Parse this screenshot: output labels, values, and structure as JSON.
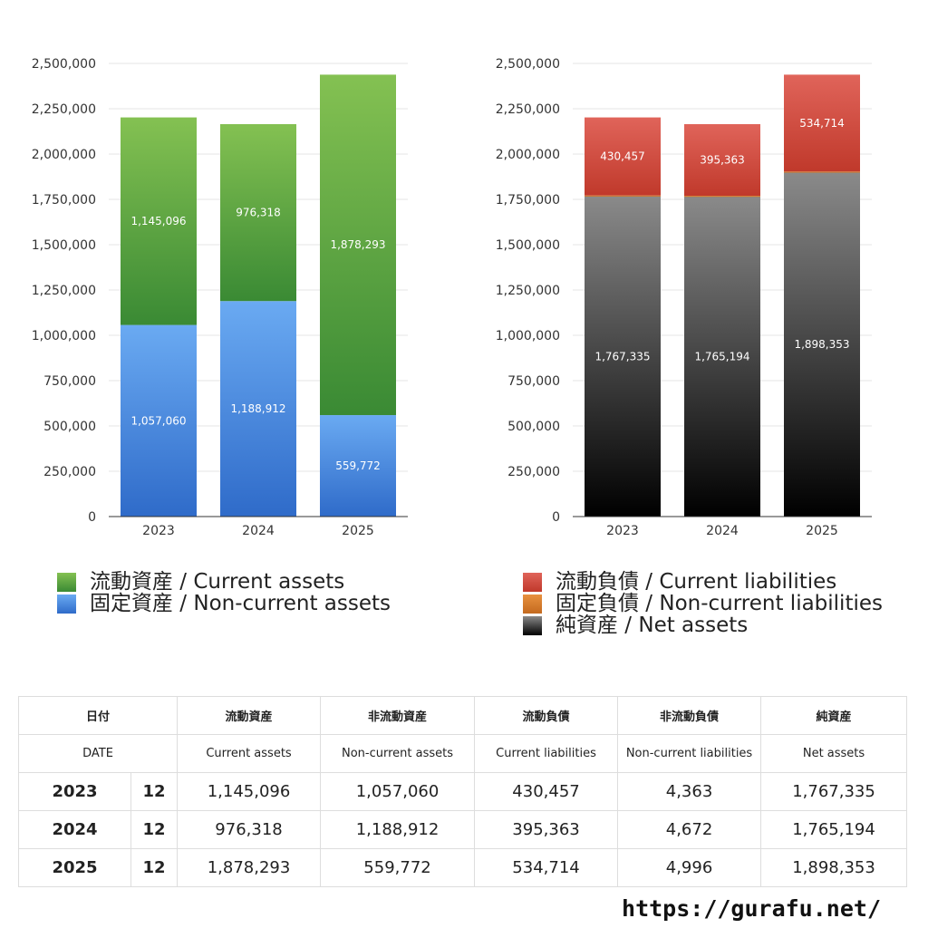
{
  "chart_data": [
    {
      "type": "bar",
      "stacked": true,
      "categories": [
        "2023",
        "2024",
        "2025"
      ],
      "ylim": [
        0,
        2500000
      ],
      "yticks": [
        0,
        250000,
        500000,
        750000,
        1000000,
        1250000,
        1500000,
        1750000,
        2000000,
        2250000,
        2500000
      ],
      "yticks_labels": [
        "0",
        "250,000",
        "500,000",
        "750,000",
        "1,000,000",
        "1,250,000",
        "1,500,000",
        "1,750,000",
        "2,000,000",
        "2,250,000",
        "2,500,000"
      ],
      "grid": true,
      "legend_position": "bottom",
      "series": [
        {
          "name": "固定資産 / Non-current assets",
          "values": [
            1057060,
            1188912,
            559772
          ],
          "labels": [
            "1,057,060",
            "1,188,912",
            "559,772"
          ],
          "color_top": "#6aaaf2",
          "color_bottom": "#2f6bc9"
        },
        {
          "name": "流動資産 / Current assets",
          "values": [
            1145096,
            976318,
            1878293
          ],
          "labels": [
            "1,145,096",
            "976,318",
            "1,878,293"
          ],
          "color_top": "#84c152",
          "color_bottom": "#3a8a34"
        }
      ]
    },
    {
      "type": "bar",
      "stacked": true,
      "categories": [
        "2023",
        "2024",
        "2025"
      ],
      "ylim": [
        0,
        2500000
      ],
      "yticks": [
        0,
        250000,
        500000,
        750000,
        1000000,
        1250000,
        1500000,
        1750000,
        2000000,
        2250000,
        2500000
      ],
      "yticks_labels": [
        "0",
        "250,000",
        "500,000",
        "750,000",
        "1,000,000",
        "1,250,000",
        "1,500,000",
        "1,750,000",
        "2,000,000",
        "2,250,000",
        "2,500,000"
      ],
      "grid": true,
      "legend_position": "bottom",
      "series": [
        {
          "name": "純資産 / Net assets",
          "values": [
            1767335,
            1765194,
            1898353
          ],
          "labels": [
            "1,767,335",
            "1,765,194",
            "1,898,353"
          ],
          "color_top": "#8a8a8a",
          "color_bottom": "#000000"
        },
        {
          "name": "固定負債 / Non-current liabilities",
          "values": [
            4363,
            4672,
            4996
          ],
          "labels": [
            "4,363",
            "4,672",
            "4,996"
          ],
          "color_top": "#e8913f",
          "color_bottom": "#c46a1f"
        },
        {
          "name": "流動負債 / Current liabilities",
          "values": [
            430457,
            395363,
            534714
          ],
          "labels": [
            "430,457",
            "395,363",
            "534,714"
          ],
          "color_top": "#e0645a",
          "color_bottom": "#c0392b"
        }
      ]
    }
  ],
  "legend_left": [
    {
      "label": "流動資産 / Current assets",
      "color": "#5aa646"
    },
    {
      "label": "固定資産 / Non-current assets",
      "color": "#3f7fd8"
    }
  ],
  "legend_right": [
    {
      "label": "流動負債 / Current liabilities",
      "color": "#d14b3c"
    },
    {
      "label": "固定負債 / Non-current liabilities",
      "color": "#e0812e"
    },
    {
      "label": "純資産 / Net assets",
      "color": "#262626"
    }
  ],
  "table": {
    "header_jp": [
      "日付",
      "流動資産",
      "非流動資産",
      "流動負債",
      "非流動負債",
      "純資産"
    ],
    "header_en": [
      "DATE",
      "Current assets",
      "Non-current assets",
      "Current liabilities",
      "Non-current liabilities",
      "Net assets"
    ],
    "rows": [
      {
        "year": "2023",
        "month": "12",
        "values": [
          "1,145,096",
          "1,057,060",
          "430,457",
          "4,363",
          "1,767,335"
        ]
      },
      {
        "year": "2024",
        "month": "12",
        "values": [
          "976,318",
          "1,188,912",
          "395,363",
          "4,672",
          "1,765,194"
        ]
      },
      {
        "year": "2025",
        "month": "12",
        "values": [
          "1,878,293",
          "559,772",
          "534,714",
          "4,996",
          "1,898,353"
        ]
      }
    ]
  },
  "site_url": "https://gurafu.net/"
}
